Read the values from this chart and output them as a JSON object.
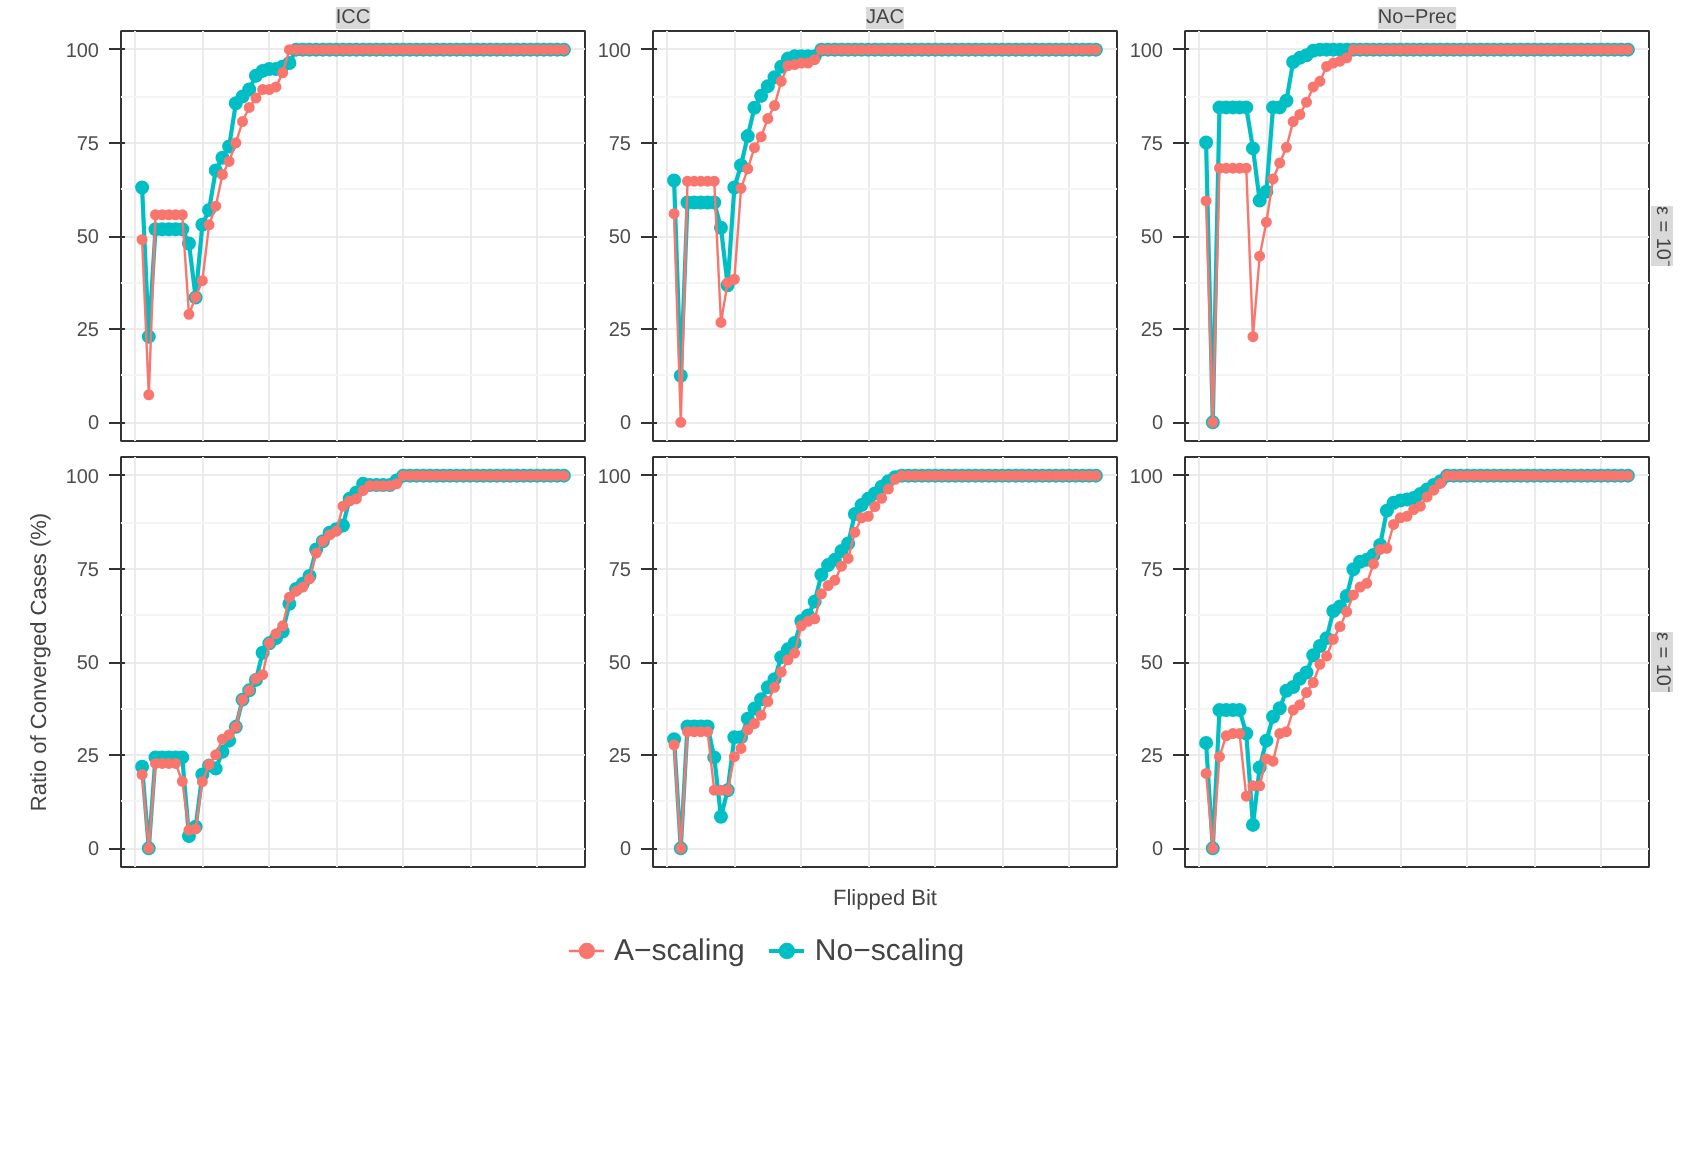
{
  "chart_data": [
    {
      "type": "line",
      "title": "ICC",
      "ylim": [
        -5,
        105
      ],
      "yticks": [
        0,
        25,
        50,
        75,
        100
      ],
      "grid": true,
      "marker": "circle",
      "line_style": "solid",
      "tick_labels": "y",
      "categories": [
        null,
        null,
        null,
        null,
        null,
        null,
        null,
        null,
        null,
        null,
        null,
        null,
        null,
        null,
        null,
        null,
        null,
        null,
        null,
        null,
        null,
        null,
        null,
        null,
        null,
        null,
        null,
        null,
        null,
        null,
        null,
        null,
        null,
        null,
        null,
        null,
        null,
        null,
        null,
        null,
        null,
        null,
        null,
        null,
        null,
        null,
        null,
        null,
        null,
        null,
        null,
        null,
        null,
        null,
        null,
        null,
        null,
        null,
        null,
        null,
        null,
        null,
        null,
        null
      ],
      "series": [
        {
          "color": "#f8766d",
          "values": [
            49,
            7.4,
            55.7,
            55.7,
            55.7,
            55.7,
            55.7,
            29,
            33.6,
            38,
            53,
            58,
            66.5,
            70,
            75,
            80.7,
            84.5,
            87,
            89.3,
            89.3,
            90,
            93.8,
            100,
            100,
            100,
            100,
            100,
            100,
            100,
            100,
            100,
            100,
            100,
            100,
            100,
            100,
            100,
            100,
            100,
            100,
            100,
            100,
            100,
            100,
            100,
            100,
            100,
            100,
            100,
            100,
            100,
            100,
            100,
            100,
            100,
            100,
            100,
            100,
            100,
            100,
            100,
            100,
            100,
            100
          ]
        },
        {
          "color": "#00bfc4",
          "values": [
            63,
            23,
            51.8,
            51.8,
            51.8,
            51.8,
            51.8,
            48,
            33.5,
            53,
            57,
            67.6,
            71,
            74,
            85.6,
            87.4,
            89.3,
            93,
            94.3,
            94.8,
            94.8,
            95.5,
            96.4,
            100,
            100,
            100,
            100,
            100,
            100,
            100,
            100,
            100,
            100,
            100,
            100,
            100,
            100,
            100,
            100,
            100,
            100,
            100,
            100,
            100,
            100,
            100,
            100,
            100,
            100,
            100,
            100,
            100,
            100,
            100,
            100,
            100,
            100,
            100,
            100,
            100,
            100,
            100,
            100,
            100
          ]
        }
      ]
    },
    {
      "type": "line",
      "title": "JAC",
      "ylim": [
        -5,
        105
      ],
      "yticks": [
        0,
        25,
        50,
        75,
        100
      ],
      "grid": true,
      "marker": "circle",
      "line_style": "solid",
      "tick_labels": "y",
      "categories": [
        null,
        null,
        null,
        null,
        null,
        null,
        null,
        null,
        null,
        null,
        null,
        null,
        null,
        null,
        null,
        null,
        null,
        null,
        null,
        null,
        null,
        null,
        null,
        null,
        null,
        null,
        null,
        null,
        null,
        null,
        null,
        null,
        null,
        null,
        null,
        null,
        null,
        null,
        null,
        null,
        null,
        null,
        null,
        null,
        null,
        null,
        null,
        null,
        null,
        null,
        null,
        null,
        null,
        null,
        null,
        null,
        null,
        null,
        null,
        null,
        null,
        null,
        null,
        null
      ],
      "series": [
        {
          "color": "#f8766d",
          "values": [
            56,
            0,
            64.7,
            64.7,
            64.7,
            64.7,
            64.7,
            26.8,
            37.5,
            38.4,
            62.8,
            68,
            73.7,
            76.6,
            81.5,
            85,
            91.5,
            95.7,
            96,
            96.4,
            96.4,
            97.3,
            100,
            100,
            100,
            100,
            100,
            100,
            100,
            100,
            100,
            100,
            100,
            100,
            100,
            100,
            100,
            100,
            100,
            100,
            100,
            100,
            100,
            100,
            100,
            100,
            100,
            100,
            100,
            100,
            100,
            100,
            100,
            100,
            100,
            100,
            100,
            100,
            100,
            100,
            100,
            100,
            100,
            100
          ]
        },
        {
          "color": "#00bfc4",
          "values": [
            64.9,
            12.5,
            59,
            59,
            59,
            59,
            59,
            52.2,
            36.8,
            63,
            69,
            76.8,
            84.4,
            87.6,
            90.2,
            92.6,
            95.4,
            97.6,
            98.2,
            98.2,
            98.2,
            98.2,
            100,
            100,
            100,
            100,
            100,
            100,
            100,
            100,
            100,
            100,
            100,
            100,
            100,
            100,
            100,
            100,
            100,
            100,
            100,
            100,
            100,
            100,
            100,
            100,
            100,
            100,
            100,
            100,
            100,
            100,
            100,
            100,
            100,
            100,
            100,
            100,
            100,
            100,
            100,
            100,
            100,
            100
          ]
        }
      ]
    },
    {
      "type": "line",
      "title": "No−Prec",
      "y2label": "ε = 10⁻",
      "ylim": [
        -5,
        105
      ],
      "yticks": [
        0,
        25,
        50,
        75,
        100
      ],
      "grid": true,
      "marker": "circle",
      "line_style": "solid",
      "tick_labels": "y",
      "categories": [
        null,
        null,
        null,
        null,
        null,
        null,
        null,
        null,
        null,
        null,
        null,
        null,
        null,
        null,
        null,
        null,
        null,
        null,
        null,
        null,
        null,
        null,
        null,
        null,
        null,
        null,
        null,
        null,
        null,
        null,
        null,
        null,
        null,
        null,
        null,
        null,
        null,
        null,
        null,
        null,
        null,
        null,
        null,
        null,
        null,
        null,
        null,
        null,
        null,
        null,
        null,
        null,
        null,
        null,
        null,
        null,
        null,
        null,
        null,
        null,
        null,
        null,
        null,
        null
      ],
      "series": [
        {
          "color": "#f8766d",
          "values": [
            59.4,
            0,
            68.2,
            68.2,
            68.2,
            68.2,
            68.2,
            23,
            44.6,
            53.7,
            65.3,
            69.6,
            73.8,
            80.7,
            82.6,
            85.9,
            90,
            91.5,
            95.5,
            96.4,
            96.9,
            97.8,
            100,
            100,
            100,
            100,
            100,
            100,
            100,
            100,
            100,
            100,
            100,
            100,
            100,
            100,
            100,
            100,
            100,
            100,
            100,
            100,
            100,
            100,
            100,
            100,
            100,
            100,
            100,
            100,
            100,
            100,
            100,
            100,
            100,
            100,
            100,
            100,
            100,
            100,
            100,
            100,
            100,
            100
          ]
        },
        {
          "color": "#00bfc4",
          "values": [
            75.1,
            0,
            84.5,
            84.5,
            84.5,
            84.5,
            84.5,
            73.5,
            59.5,
            61.9,
            84.5,
            84.5,
            86.3,
            96.7,
            97.8,
            98.5,
            99.7,
            100,
            100,
            100,
            100,
            100,
            100,
            100,
            100,
            100,
            100,
            100,
            100,
            100,
            100,
            100,
            100,
            100,
            100,
            100,
            100,
            100,
            100,
            100,
            100,
            100,
            100,
            100,
            100,
            100,
            100,
            100,
            100,
            100,
            100,
            100,
            100,
            100,
            100,
            100,
            100,
            100,
            100,
            100,
            100,
            100,
            100,
            100
          ]
        }
      ]
    },
    {
      "type": "line",
      "ylabel": "Ratio of Converged Cases (%)",
      "ylim": [
        -5,
        105
      ],
      "yticks": [
        0,
        25,
        50,
        75,
        100
      ],
      "grid": true,
      "marker": "circle",
      "line_style": "solid",
      "tick_labels": "y",
      "categories": [
        null,
        null,
        null,
        null,
        null,
        null,
        null,
        null,
        null,
        null,
        null,
        null,
        null,
        null,
        null,
        null,
        null,
        null,
        null,
        null,
        null,
        null,
        null,
        null,
        null,
        null,
        null,
        null,
        null,
        null,
        null,
        null,
        null,
        null,
        null,
        null,
        null,
        null,
        null,
        null,
        null,
        null,
        null,
        null,
        null,
        null,
        null,
        null,
        null,
        null,
        null,
        null,
        null,
        null,
        null,
        null,
        null,
        null,
        null,
        null,
        null,
        null,
        null,
        null
      ],
      "series": [
        {
          "color": "#f8766d",
          "values": [
            19.8,
            0,
            22.8,
            22.8,
            22.8,
            22.8,
            18,
            4.9,
            5.2,
            17.9,
            22.5,
            25.1,
            29.3,
            30.5,
            32.6,
            39.9,
            42.4,
            45.5,
            46.6,
            55,
            57.6,
            59.7,
            67.4,
            69,
            70.1,
            72.3,
            79.2,
            82.4,
            84.1,
            85.1,
            91.8,
            93.2,
            93.8,
            96,
            97.3,
            97.3,
            97.3,
            97.3,
            97.8,
            100,
            100,
            100,
            100,
            100,
            100,
            100,
            100,
            100,
            100,
            100,
            100,
            100,
            100,
            100,
            100,
            100,
            100,
            100,
            100,
            100,
            100,
            100,
            100,
            100
          ]
        },
        {
          "color": "#00bfc4",
          "values": [
            21.9,
            0,
            24.4,
            24.4,
            24.4,
            24.4,
            24.4,
            3.3,
            5.8,
            19.8,
            22.2,
            21.4,
            25.9,
            28.9,
            32.6,
            39.9,
            42.4,
            45.2,
            52.5,
            55,
            56.4,
            58.2,
            65.6,
            69.6,
            71,
            73.1,
            80.2,
            82.4,
            84.7,
            85.6,
            86.6,
            93.8,
            95.5,
            97.8,
            97.5,
            97.5,
            97.5,
            97.5,
            98.7,
            100,
            100,
            100,
            100,
            100,
            100,
            100,
            100,
            100,
            100,
            100,
            100,
            100,
            100,
            100,
            100,
            100,
            100,
            100,
            100,
            100,
            100,
            100,
            100,
            100
          ]
        }
      ]
    },
    {
      "type": "line",
      "xlabel": "Flipped Bit",
      "legend": "bottom",
      "ylim": [
        -5,
        105
      ],
      "yticks": [
        0,
        25,
        50,
        75,
        100
      ],
      "grid": true,
      "marker": "circle",
      "line_style": "solid",
      "tick_labels": "y",
      "categories": [
        null,
        null,
        null,
        null,
        null,
        null,
        null,
        null,
        null,
        null,
        null,
        null,
        null,
        null,
        null,
        null,
        null,
        null,
        null,
        null,
        null,
        null,
        null,
        null,
        null,
        null,
        null,
        null,
        null,
        null,
        null,
        null,
        null,
        null,
        null,
        null,
        null,
        null,
        null,
        null,
        null,
        null,
        null,
        null,
        null,
        null,
        null,
        null,
        null,
        null,
        null,
        null,
        null,
        null,
        null,
        null,
        null,
        null,
        null,
        null,
        null,
        null,
        null,
        null
      ],
      "series": [
        {
          "name": "A−scaling",
          "color": "#f8766d",
          "values": [
            27.8,
            0,
            31.3,
            31.3,
            31.3,
            31.3,
            15.6,
            15.6,
            15.6,
            24.6,
            26.8,
            31.8,
            33.5,
            35.7,
            39.4,
            43.2,
            47.3,
            50.6,
            52.4,
            59.7,
            60.9,
            61.6,
            68.3,
            70.5,
            71.9,
            75.7,
            77.8,
            84.8,
            88.7,
            89.1,
            91.7,
            93.9,
            96.4,
            99,
            100,
            100,
            100,
            100,
            100,
            100,
            100,
            100,
            100,
            100,
            100,
            100,
            100,
            100,
            100,
            100,
            100,
            100,
            100,
            100,
            100,
            100,
            100,
            100,
            100,
            100,
            100,
            100,
            100,
            100
          ]
        },
        {
          "name": "No−scaling",
          "color": "#00bfc4",
          "values": [
            29.3,
            0,
            32.7,
            32.7,
            32.7,
            32.7,
            24.4,
            8.5,
            15.6,
            29.8,
            29.8,
            34.8,
            37.5,
            40,
            43.2,
            45.4,
            51.3,
            53.4,
            55.1,
            61,
            62.5,
            66.2,
            73.4,
            76,
            77.4,
            79.8,
            81.8,
            89.7,
            92.1,
            93.8,
            95.2,
            97,
            98.5,
            99.6,
            100,
            100,
            100,
            100,
            100,
            100,
            100,
            100,
            100,
            100,
            100,
            100,
            100,
            100,
            100,
            100,
            100,
            100,
            100,
            100,
            100,
            100,
            100,
            100,
            100,
            100,
            100,
            100,
            100,
            100
          ]
        }
      ]
    },
    {
      "type": "line",
      "y2label": "ε = 10⁻",
      "ylim": [
        -5,
        105
      ],
      "yticks": [
        0,
        25,
        50,
        75,
        100
      ],
      "grid": true,
      "marker": "circle",
      "line_style": "solid",
      "tick_labels": "y",
      "categories": [
        null,
        null,
        null,
        null,
        null,
        null,
        null,
        null,
        null,
        null,
        null,
        null,
        null,
        null,
        null,
        null,
        null,
        null,
        null,
        null,
        null,
        null,
        null,
        null,
        null,
        null,
        null,
        null,
        null,
        null,
        null,
        null,
        null,
        null,
        null,
        null,
        null,
        null,
        null,
        null,
        null,
        null,
        null,
        null,
        null,
        null,
        null,
        null,
        null,
        null,
        null,
        null,
        null,
        null,
        null,
        null,
        null,
        null,
        null,
        null,
        null,
        null,
        null,
        null
      ],
      "series": [
        {
          "color": "#f8766d",
          "values": [
            20.1,
            0,
            24.6,
            30.2,
            30.8,
            30.8,
            14,
            16.8,
            16.8,
            24,
            23.4,
            30.8,
            31.3,
            37.1,
            38.5,
            41.8,
            44.5,
            49.4,
            51.6,
            56.1,
            59.5,
            63.5,
            68,
            70.1,
            71.1,
            76.3,
            80.2,
            80.5,
            86.9,
            88.7,
            89.1,
            90.9,
            91.8,
            94.3,
            96.1,
            97.9,
            100,
            100,
            100,
            100,
            100,
            100,
            100,
            100,
            100,
            100,
            100,
            100,
            100,
            100,
            100,
            100,
            100,
            100,
            100,
            100,
            100,
            100,
            100,
            100,
            100,
            100,
            100,
            100
          ]
        },
        {
          "color": "#00bfc4",
          "values": [
            28.3,
            0,
            37.1,
            37.1,
            37.1,
            37.1,
            30.8,
            6.3,
            21.7,
            28.9,
            35.3,
            37.6,
            42.3,
            43.3,
            45.5,
            47.2,
            51.8,
            54.3,
            56.4,
            63.7,
            64.9,
            67.7,
            74.9,
            76.9,
            77.4,
            78.7,
            81.4,
            90.6,
            92.7,
            93.3,
            93.6,
            94,
            95.1,
            96.3,
            97.5,
            98.5,
            100,
            100,
            100,
            100,
            100,
            100,
            100,
            100,
            100,
            100,
            100,
            100,
            100,
            100,
            100,
            100,
            100,
            100,
            100,
            100,
            100,
            100,
            100,
            100,
            100,
            100,
            100,
            100
          ]
        }
      ]
    }
  ]
}
